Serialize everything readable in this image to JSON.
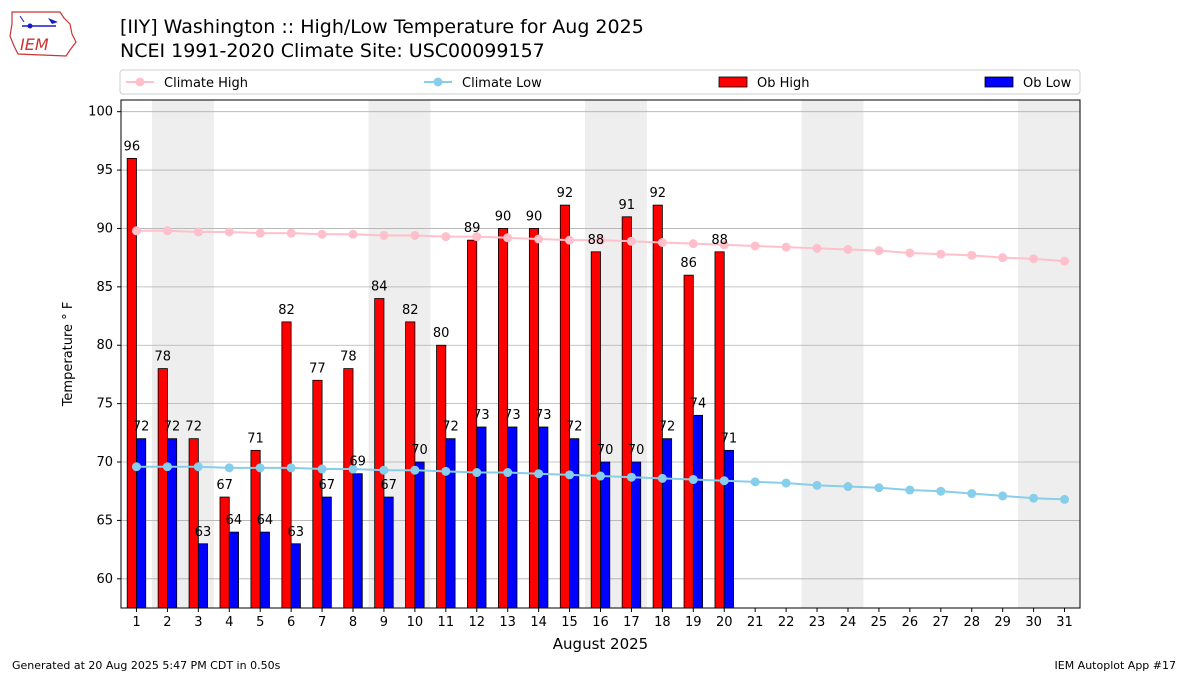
{
  "header": {
    "title_line1": "[IIY] Washington :: High/Low Temperature for Aug 2025",
    "title_line2": "NCEI 1991-2020 Climate Site: USC00099157",
    "logo_text": "IEM"
  },
  "footer": {
    "generated": "Generated at 20 Aug 2025 5:47 PM CDT in 0.50s",
    "app": "IEM Autoplot App #17"
  },
  "colors": {
    "ob_high": "#ff0000",
    "ob_low": "#0000ff",
    "climate_high": "#ffc0cb",
    "climate_low": "#87ceeb",
    "weekend_shade": "#eeeeee",
    "grid": "#b0b0b0"
  },
  "chart_data": {
    "type": "bar",
    "xlabel": "August 2025",
    "ylabel": "Temperature ° F",
    "xlim": [
      0.5,
      31.5
    ],
    "ylim": [
      57.5,
      101
    ],
    "yticks": [
      60,
      65,
      70,
      75,
      80,
      85,
      90,
      95,
      100
    ],
    "grid": "horizontal",
    "legend_position": "top",
    "weekend_days": [
      [
        2,
        3
      ],
      [
        9,
        10
      ],
      [
        16,
        17
      ],
      [
        23,
        24
      ],
      [
        30,
        31
      ]
    ],
    "days": [
      1,
      2,
      3,
      4,
      5,
      6,
      7,
      8,
      9,
      10,
      11,
      12,
      13,
      14,
      15,
      16,
      17,
      18,
      19,
      20,
      21,
      22,
      23,
      24,
      25,
      26,
      27,
      28,
      29,
      30,
      31
    ],
    "legend": [
      "Climate High",
      "Climate Low",
      "Ob High",
      "Ob Low"
    ],
    "series": [
      {
        "name": "Ob High",
        "kind": "bar",
        "values": [
          96,
          78,
          72,
          67,
          71,
          82,
          77,
          78,
          84,
          82,
          80,
          89,
          90,
          90,
          92,
          88,
          91,
          92,
          86,
          88
        ]
      },
      {
        "name": "Ob Low",
        "kind": "bar",
        "values": [
          72,
          72,
          63,
          64,
          64,
          63,
          67,
          69,
          67,
          70,
          72,
          73,
          73,
          73,
          72,
          70,
          70,
          72,
          74,
          71
        ]
      },
      {
        "name": "Climate High",
        "kind": "line",
        "values": [
          89.8,
          89.8,
          89.7,
          89.7,
          89.6,
          89.6,
          89.5,
          89.5,
          89.4,
          89.4,
          89.3,
          89.3,
          89.2,
          89.1,
          89.0,
          89.0,
          88.9,
          88.8,
          88.7,
          88.6,
          88.5,
          88.4,
          88.3,
          88.2,
          88.1,
          87.9,
          87.8,
          87.7,
          87.5,
          87.4,
          87.2
        ]
      },
      {
        "name": "Climate Low",
        "kind": "line",
        "values": [
          69.6,
          69.6,
          69.6,
          69.5,
          69.5,
          69.5,
          69.4,
          69.4,
          69.3,
          69.3,
          69.2,
          69.1,
          69.1,
          69.0,
          68.9,
          68.8,
          68.7,
          68.6,
          68.5,
          68.4,
          68.3,
          68.2,
          68.0,
          67.9,
          67.8,
          67.6,
          67.5,
          67.3,
          67.1,
          66.9,
          66.8
        ]
      }
    ]
  }
}
